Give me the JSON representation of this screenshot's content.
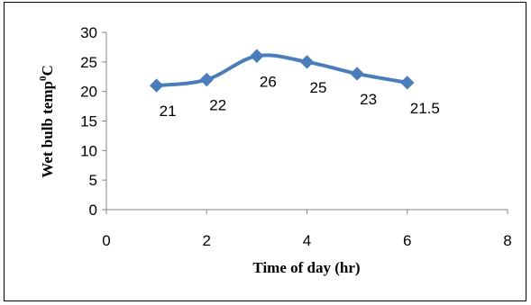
{
  "chart_data": {
    "type": "line",
    "title": "",
    "xlabel": "Time of day (hr)",
    "ylabel": "Wet bulb temp",
    "ylabel_sup": "0",
    "ylabel_unit": "C",
    "xlim": [
      0,
      8
    ],
    "ylim": [
      0,
      30
    ],
    "xticks": [
      "0",
      "2",
      "4",
      "6",
      "8"
    ],
    "yticks": [
      "0",
      "5",
      "10",
      "15",
      "20",
      "25",
      "30"
    ],
    "grid": false,
    "legend": "none",
    "series": [
      {
        "color": "#4a7ebb",
        "points": [
          {
            "x": 1,
            "y": 21,
            "label": "21"
          },
          {
            "x": 2,
            "y": 22,
            "label": "22"
          },
          {
            "x": 3,
            "y": 26,
            "label": "26"
          },
          {
            "x": 4,
            "y": 25,
            "label": "25"
          },
          {
            "x": 5,
            "y": 23,
            "label": "23"
          },
          {
            "x": 6,
            "y": 21.5,
            "label": "21.5"
          }
        ]
      }
    ]
  }
}
